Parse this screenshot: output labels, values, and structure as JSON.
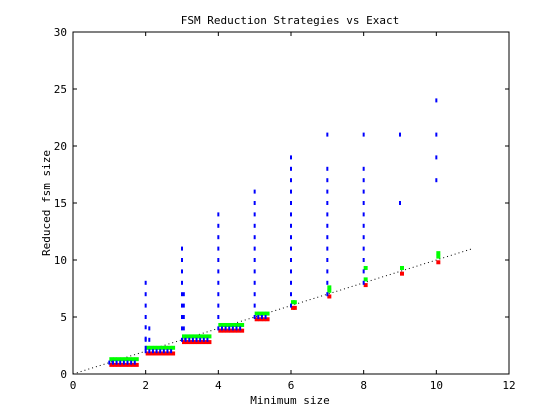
{
  "chart_data": {
    "type": "scatter",
    "title": "FSM Reduction Strategies vs Exact",
    "xlabel": "Minimum size",
    "ylabel": "Reduced fsm size",
    "xlim": [
      0,
      12
    ],
    "ylim": [
      0,
      30
    ],
    "xticks": [
      "0",
      "2",
      "4",
      "6",
      "8",
      "10",
      "12"
    ],
    "yticks": [
      "0",
      "5",
      "10",
      "15",
      "20",
      "25",
      "30"
    ],
    "grid": false,
    "legend": "none",
    "colors": {
      "red": "#ff0000",
      "green": "#00ff00",
      "blue": "#0000ff",
      "reference": "#000000"
    },
    "reference_line": {
      "style": "dotted",
      "points": [
        [
          0,
          0
        ],
        [
          11,
          11
        ]
      ]
    },
    "series": [
      {
        "color": "red",
        "marker": "short horizontal segment",
        "points": [
          [
            1.0,
            0.8
          ],
          [
            1.1,
            0.8
          ],
          [
            1.2,
            0.8
          ],
          [
            1.3,
            0.8
          ],
          [
            1.4,
            0.8
          ],
          [
            1.5,
            0.8
          ],
          [
            1.6,
            0.8
          ],
          [
            1.7,
            0.8
          ],
          [
            2.0,
            1.8
          ],
          [
            2.1,
            1.8
          ],
          [
            2.2,
            1.8
          ],
          [
            2.3,
            1.8
          ],
          [
            2.4,
            1.8
          ],
          [
            2.5,
            1.8
          ],
          [
            2.6,
            1.8
          ],
          [
            2.7,
            1.8
          ],
          [
            3.0,
            2.8
          ],
          [
            3.1,
            2.8
          ],
          [
            3.2,
            2.8
          ],
          [
            3.3,
            2.8
          ],
          [
            3.4,
            2.8
          ],
          [
            3.5,
            2.8
          ],
          [
            3.6,
            2.8
          ],
          [
            3.7,
            2.8
          ],
          [
            4.0,
            3.8
          ],
          [
            4.1,
            3.8
          ],
          [
            4.2,
            3.8
          ],
          [
            4.3,
            3.8
          ],
          [
            4.4,
            3.8
          ],
          [
            4.5,
            3.8
          ],
          [
            4.6,
            3.8
          ],
          [
            5.0,
            4.8
          ],
          [
            5.1,
            4.8
          ],
          [
            5.2,
            4.8
          ],
          [
            5.3,
            4.8
          ],
          [
            6.0,
            5.8
          ],
          [
            6.05,
            5.8
          ],
          [
            7.0,
            6.8
          ],
          [
            8.0,
            7.8
          ],
          [
            9.0,
            8.8
          ],
          [
            10.0,
            9.8
          ]
        ]
      },
      {
        "color": "green",
        "marker": "short horizontal segment",
        "points": [
          [
            1.0,
            1.3
          ],
          [
            1.1,
            1.3
          ],
          [
            1.2,
            1.3
          ],
          [
            1.3,
            1.3
          ],
          [
            1.4,
            1.3
          ],
          [
            1.5,
            1.3
          ],
          [
            1.6,
            1.3
          ],
          [
            1.7,
            1.3
          ],
          [
            2.0,
            2.3
          ],
          [
            2.1,
            2.3
          ],
          [
            2.2,
            2.3
          ],
          [
            2.3,
            2.3
          ],
          [
            2.4,
            2.3
          ],
          [
            2.5,
            2.3
          ],
          [
            2.6,
            2.3
          ],
          [
            2.7,
            2.3
          ],
          [
            3.0,
            3.3
          ],
          [
            3.1,
            3.3
          ],
          [
            3.2,
            3.3
          ],
          [
            3.3,
            3.3
          ],
          [
            3.4,
            3.3
          ],
          [
            3.5,
            3.3
          ],
          [
            3.6,
            3.3
          ],
          [
            3.7,
            3.3
          ],
          [
            4.0,
            4.3
          ],
          [
            4.1,
            4.3
          ],
          [
            4.2,
            4.3
          ],
          [
            4.3,
            4.3
          ],
          [
            4.4,
            4.3
          ],
          [
            4.5,
            4.3
          ],
          [
            4.6,
            4.3
          ],
          [
            5.0,
            5.3
          ],
          [
            5.1,
            5.3
          ],
          [
            5.2,
            5.3
          ],
          [
            5.3,
            5.3
          ],
          [
            6.0,
            6.3
          ],
          [
            6.05,
            6.3
          ],
          [
            7.0,
            7.3
          ],
          [
            7.0,
            7.6
          ],
          [
            8.0,
            8.3
          ],
          [
            8.0,
            9.3
          ],
          [
            9.0,
            9.3
          ],
          [
            10.0,
            10.3
          ],
          [
            10.0,
            10.6
          ]
        ]
      },
      {
        "color": "blue",
        "marker": "short vertical dash",
        "points": [
          [
            1.0,
            1.0
          ],
          [
            1.1,
            1.0
          ],
          [
            1.2,
            1.0
          ],
          [
            1.3,
            1.0
          ],
          [
            1.4,
            1.0
          ],
          [
            1.5,
            1.0
          ],
          [
            1.6,
            1.0
          ],
          [
            1.7,
            1.0
          ],
          [
            2.0,
            2.0
          ],
          [
            2.0,
            2.3
          ],
          [
            2.0,
            3.0
          ],
          [
            2.0,
            3.1
          ],
          [
            2.0,
            4.1
          ],
          [
            2.0,
            5.0
          ],
          [
            2.0,
            6.0
          ],
          [
            2.0,
            7.0
          ],
          [
            2.0,
            8.0
          ],
          [
            2.1,
            2.0
          ],
          [
            2.1,
            3.0
          ],
          [
            2.1,
            4.0
          ],
          [
            2.2,
            2.0
          ],
          [
            2.3,
            2.0
          ],
          [
            2.4,
            2.0
          ],
          [
            2.5,
            2.0
          ],
          [
            2.6,
            2.0
          ],
          [
            2.7,
            2.0
          ],
          [
            3.0,
            3.0
          ],
          [
            3.0,
            4.0
          ],
          [
            3.0,
            5.0
          ],
          [
            3.0,
            6.0
          ],
          [
            3.0,
            7.0
          ],
          [
            3.0,
            8.0
          ],
          [
            3.0,
            9.0
          ],
          [
            3.0,
            10.0
          ],
          [
            3.0,
            11.0
          ],
          [
            3.05,
            4.0
          ],
          [
            3.05,
            5.0
          ],
          [
            3.05,
            6.0
          ],
          [
            3.05,
            7.0
          ],
          [
            3.1,
            3.0
          ],
          [
            3.2,
            3.0
          ],
          [
            3.3,
            3.0
          ],
          [
            3.4,
            3.0
          ],
          [
            3.5,
            3.0
          ],
          [
            3.6,
            3.0
          ],
          [
            3.7,
            3.0
          ],
          [
            4.0,
            4.0
          ],
          [
            4.0,
            5.0
          ],
          [
            4.0,
            6.0
          ],
          [
            4.0,
            7.0
          ],
          [
            4.0,
            8.0
          ],
          [
            4.0,
            9.0
          ],
          [
            4.0,
            10.0
          ],
          [
            4.0,
            11.0
          ],
          [
            4.0,
            12.0
          ],
          [
            4.0,
            13.0
          ],
          [
            4.0,
            14.0
          ],
          [
            4.1,
            4.0
          ],
          [
            4.2,
            4.0
          ],
          [
            4.3,
            4.0
          ],
          [
            4.4,
            4.0
          ],
          [
            4.5,
            4.0
          ],
          [
            4.6,
            4.0
          ],
          [
            5.0,
            5.0
          ],
          [
            5.0,
            6.0
          ],
          [
            5.0,
            7.0
          ],
          [
            5.0,
            8.0
          ],
          [
            5.0,
            9.0
          ],
          [
            5.0,
            10.0
          ],
          [
            5.0,
            11.0
          ],
          [
            5.0,
            12.0
          ],
          [
            5.0,
            13.0
          ],
          [
            5.0,
            14.0
          ],
          [
            5.0,
            15.0
          ],
          [
            5.0,
            16.0
          ],
          [
            5.1,
            5.0
          ],
          [
            5.2,
            5.0
          ],
          [
            5.3,
            5.0
          ],
          [
            6.0,
            6.0
          ],
          [
            6.0,
            7.0
          ],
          [
            6.0,
            8.0
          ],
          [
            6.0,
            9.0
          ],
          [
            6.0,
            10.0
          ],
          [
            6.0,
            11.0
          ],
          [
            6.0,
            12.0
          ],
          [
            6.0,
            13.0
          ],
          [
            6.0,
            14.0
          ],
          [
            6.0,
            15.0
          ],
          [
            6.0,
            16.0
          ],
          [
            6.0,
            17.0
          ],
          [
            6.0,
            18.0
          ],
          [
            6.0,
            19.0
          ],
          [
            7.0,
            7.0
          ],
          [
            7.0,
            8.0
          ],
          [
            7.0,
            9.0
          ],
          [
            7.0,
            10.0
          ],
          [
            7.0,
            11.0
          ],
          [
            7.0,
            12.0
          ],
          [
            7.0,
            13.0
          ],
          [
            7.0,
            14.0
          ],
          [
            7.0,
            15.0
          ],
          [
            7.0,
            16.0
          ],
          [
            7.0,
            17.0
          ],
          [
            7.0,
            18.0
          ],
          [
            7.0,
            21.0
          ],
          [
            8.0,
            8.0
          ],
          [
            8.0,
            9.0
          ],
          [
            8.0,
            10.0
          ],
          [
            8.0,
            11.0
          ],
          [
            8.0,
            12.0
          ],
          [
            8.0,
            13.0
          ],
          [
            8.0,
            14.0
          ],
          [
            8.0,
            15.0
          ],
          [
            8.0,
            16.0
          ],
          [
            8.0,
            17.0
          ],
          [
            8.0,
            18.0
          ],
          [
            8.0,
            21.0
          ],
          [
            9.0,
            15.0
          ],
          [
            9.0,
            21.0
          ],
          [
            10.0,
            17.0
          ],
          [
            10.0,
            19.0
          ],
          [
            10.0,
            21.0
          ],
          [
            10.0,
            24.0
          ]
        ]
      }
    ]
  }
}
